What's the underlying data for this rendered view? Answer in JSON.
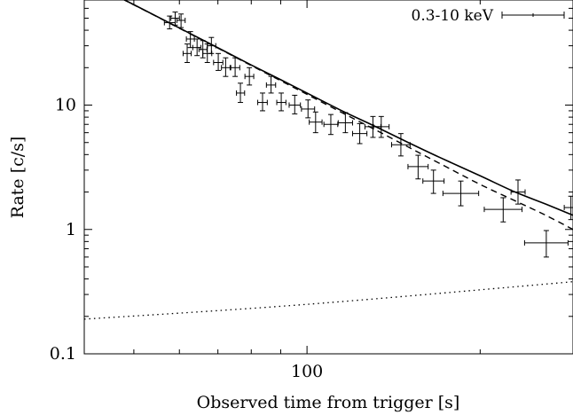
{
  "chart_data": {
    "type": "scatter",
    "title": "",
    "xlabel": "Observed time from trigger [s]",
    "ylabel": "Rate [c/s]",
    "xscale": "log",
    "yscale": "log",
    "xlim": [
      41,
      290
    ],
    "ylim": [
      0.1,
      70
    ],
    "grid": false,
    "legend_position": "top-right",
    "x_ticks": [
      {
        "value": 100,
        "label": "100"
      }
    ],
    "y_ticks": [
      {
        "value": 0.1,
        "label": "0.1"
      },
      {
        "value": 1,
        "label": "1"
      },
      {
        "value": 10,
        "label": "10"
      }
    ],
    "series": [
      {
        "name": "0.3-10 keV",
        "kind": "errorbar",
        "points": [
          {
            "x": 57.7,
            "y": 46,
            "xlo": 56.5,
            "xhi": 59.0,
            "ylo": 41,
            "yhi": 52
          },
          {
            "x": 59.0,
            "y": 50,
            "xlo": 58.0,
            "xhi": 60.0,
            "ylo": 44,
            "yhi": 56
          },
          {
            "x": 60.4,
            "y": 48,
            "xlo": 59.4,
            "xhi": 61.4,
            "ylo": 42,
            "yhi": 54
          },
          {
            "x": 61.9,
            "y": 26,
            "xlo": 60.9,
            "xhi": 62.9,
            "ylo": 22,
            "yhi": 31
          },
          {
            "x": 62.7,
            "y": 34,
            "xlo": 61.7,
            "xhi": 63.7,
            "ylo": 29,
            "yhi": 39
          },
          {
            "x": 64.4,
            "y": 29,
            "xlo": 63.3,
            "xhi": 65.4,
            "ylo": 25,
            "yhi": 34
          },
          {
            "x": 65.9,
            "y": 28,
            "xlo": 64.9,
            "xhi": 67.0,
            "ylo": 24,
            "yhi": 33
          },
          {
            "x": 67.1,
            "y": 26,
            "xlo": 65.9,
            "xhi": 68.3,
            "ylo": 22,
            "yhi": 31
          },
          {
            "x": 68.2,
            "y": 30,
            "xlo": 67.1,
            "xhi": 69.4,
            "ylo": 26,
            "yhi": 35
          },
          {
            "x": 70.1,
            "y": 22,
            "xlo": 68.8,
            "xhi": 71.4,
            "ylo": 19,
            "yhi": 26
          },
          {
            "x": 72.2,
            "y": 20,
            "xlo": 71.0,
            "xhi": 73.5,
            "ylo": 17,
            "yhi": 24
          },
          {
            "x": 75.0,
            "y": 20,
            "xlo": 73.7,
            "xhi": 76.4,
            "ylo": 17,
            "yhi": 24
          },
          {
            "x": 76.6,
            "y": 12.5,
            "xlo": 75.4,
            "xhi": 77.9,
            "ylo": 10.5,
            "yhi": 15
          },
          {
            "x": 79.4,
            "y": 17,
            "xlo": 78.0,
            "xhi": 80.8,
            "ylo": 14.5,
            "yhi": 20
          },
          {
            "x": 83.7,
            "y": 10.5,
            "xlo": 82.1,
            "xhi": 85.3,
            "ylo": 9,
            "yhi": 12.5
          },
          {
            "x": 86.6,
            "y": 14.5,
            "xlo": 85.0,
            "xhi": 88.2,
            "ylo": 12.5,
            "yhi": 17
          },
          {
            "x": 90.2,
            "y": 10.5,
            "xlo": 88.6,
            "xhi": 91.9,
            "ylo": 9,
            "yhi": 12.5
          },
          {
            "x": 95.2,
            "y": 10,
            "xlo": 93.1,
            "xhi": 97.4,
            "ylo": 8.5,
            "yhi": 12
          },
          {
            "x": 100.4,
            "y": 9.3,
            "xlo": 97.8,
            "xhi": 103.1,
            "ylo": 7.9,
            "yhi": 11
          },
          {
            "x": 103.5,
            "y": 7.3,
            "xlo": 100.9,
            "xhi": 106.2,
            "ylo": 6.0,
            "yhi": 8.8
          },
          {
            "x": 110.0,
            "y": 7.0,
            "xlo": 107.0,
            "xhi": 113.1,
            "ylo": 5.8,
            "yhi": 8.4
          },
          {
            "x": 116.6,
            "y": 7.2,
            "xlo": 113.3,
            "xhi": 120.0,
            "ylo": 6.0,
            "yhi": 8.7
          },
          {
            "x": 123.5,
            "y": 5.9,
            "xlo": 120.0,
            "xhi": 127.1,
            "ylo": 4.9,
            "yhi": 7.1
          },
          {
            "x": 130.2,
            "y": 6.7,
            "xlo": 126.1,
            "xhi": 134.4,
            "ylo": 5.5,
            "yhi": 8.1
          },
          {
            "x": 134.6,
            "y": 6.7,
            "xlo": 130.5,
            "xhi": 138.9,
            "ylo": 5.5,
            "yhi": 8.1
          },
          {
            "x": 145.6,
            "y": 4.8,
            "xlo": 140.3,
            "xhi": 151.1,
            "ylo": 3.9,
            "yhi": 5.9
          },
          {
            "x": 156.0,
            "y": 3.2,
            "xlo": 149.8,
            "xhi": 162.4,
            "ylo": 2.55,
            "yhi": 3.95
          },
          {
            "x": 165.9,
            "y": 2.45,
            "xlo": 159.0,
            "xhi": 173.1,
            "ylo": 1.95,
            "yhi": 3.0
          },
          {
            "x": 185.1,
            "y": 1.95,
            "xlo": 172.3,
            "xhi": 198.8,
            "ylo": 1.55,
            "yhi": 2.45
          },
          {
            "x": 219.3,
            "y": 1.45,
            "xlo": 203.3,
            "xhi": 236.5,
            "ylo": 1.15,
            "yhi": 1.8
          },
          {
            "x": 232.7,
            "y": 2.0,
            "xlo": 226.3,
            "xhi": 239.4,
            "ylo": 1.6,
            "yhi": 2.5
          },
          {
            "x": 260.6,
            "y": 0.78,
            "xlo": 238.9,
            "xhi": 284.3,
            "ylo": 0.6,
            "yhi": 0.98
          },
          {
            "x": 287.6,
            "y": 1.5,
            "xlo": 280.0,
            "xhi": 292.0,
            "ylo": 1.2,
            "yhi": 1.85
          }
        ]
      },
      {
        "kind": "line",
        "style": "solid",
        "x": [
          41,
          50,
          60,
          70,
          80,
          90,
          100,
          115,
          130,
          150,
          170,
          200,
          230,
          260,
          290
        ],
        "y": [
          101.7,
          64.2,
          41.7,
          28.9,
          21.0,
          16.0,
          12.5,
          9.0,
          6.9,
          5.0,
          3.8,
          2.7,
          2.0,
          1.6,
          1.3
        ]
      },
      {
        "kind": "line",
        "style": "dashed",
        "x": [
          41,
          50,
          60,
          70,
          80,
          90,
          100,
          115,
          130,
          150,
          170,
          200,
          230,
          260,
          290
        ],
        "y": [
          101.5,
          64.0,
          41.5,
          28.7,
          20.8,
          15.7,
          12.2,
          8.7,
          6.5,
          4.6,
          3.4,
          2.3,
          1.7,
          1.3,
          1.0
        ]
      },
      {
        "kind": "line",
        "style": "dotted",
        "x": [
          41,
          100,
          290
        ],
        "y": [
          0.19,
          0.25,
          0.38
        ]
      }
    ]
  }
}
